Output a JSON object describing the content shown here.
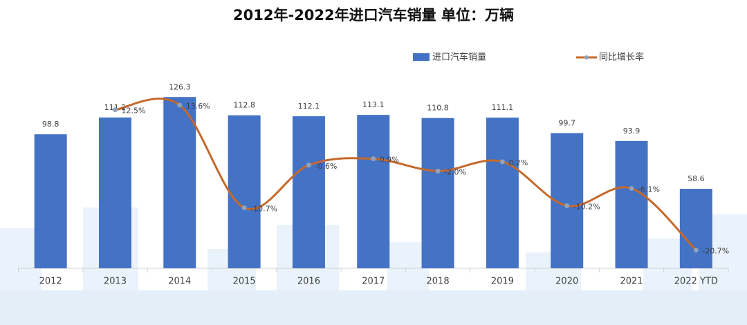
{
  "chart_data": {
    "type": "bar_line",
    "title": "2012年-2022年进口汽车销量  单位：万辆",
    "categories": [
      "2012",
      "2013",
      "2014",
      "2015",
      "2016",
      "2017",
      "2018",
      "2019",
      "2020",
      "2021",
      "2022 YTD"
    ],
    "series": [
      {
        "name": "进口汽车销量",
        "type": "bar",
        "color": "#4472c4",
        "values": [
          98.8,
          111.2,
          126.3,
          112.8,
          112.1,
          113.1,
          110.8,
          111.1,
          99.7,
          93.9,
          58.6
        ]
      },
      {
        "name": "同比增长率",
        "type": "line",
        "axis": "y2",
        "color": "#c5692b",
        "marker_color": "#8fa3bd",
        "values": [
          null,
          12.5,
          13.6,
          -10.7,
          -0.6,
          0.9,
          -2.0,
          0.2,
          -10.2,
          -6.1,
          -20.7
        ],
        "value_labels": [
          null,
          "12.5%",
          "13.6%",
          "-10.7%",
          "-0.6%",
          "0.9%",
          "-2.0%",
          "0.2%",
          "-10.2%",
          "-6.1%",
          "-20.7%"
        ]
      }
    ],
    "ylim": [
      0,
      130
    ],
    "y2lim": [
      -25,
      16.7
    ],
    "legend": "top-right"
  }
}
